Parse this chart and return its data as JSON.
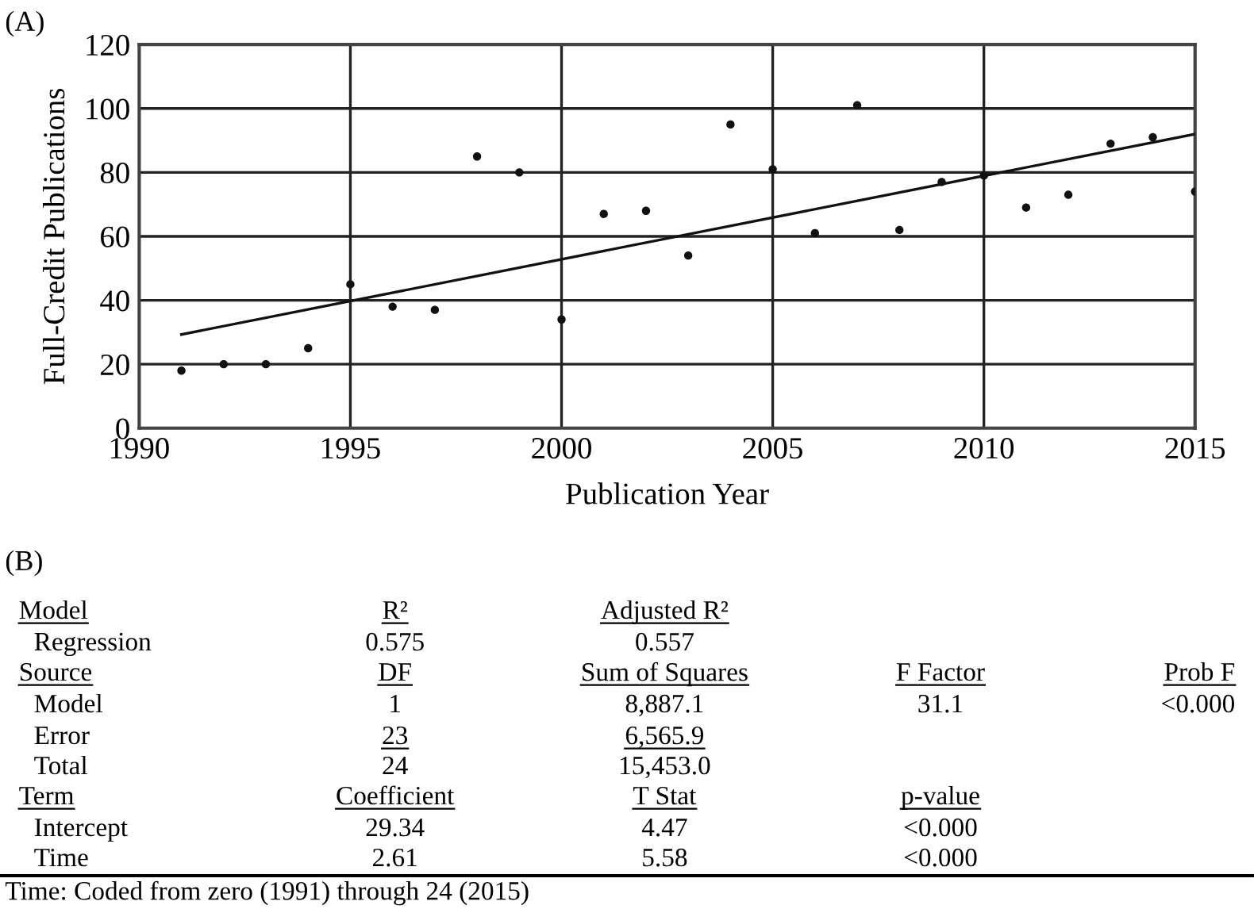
{
  "chart_data": {
    "type": "scatter",
    "xlabel": "Publication Year",
    "ylabel": "Full-Credit Publications",
    "xlim": [
      1990,
      2015
    ],
    "ylim": [
      0,
      120
    ],
    "xticks": [
      1990,
      1995,
      2000,
      2005,
      2010,
      2015
    ],
    "yticks": [
      0,
      20,
      40,
      60,
      80,
      100,
      120
    ],
    "grid": true,
    "series": [
      {
        "color": "#111111",
        "marker": "circle",
        "x": [
          1991,
          1992,
          1993,
          1994,
          1995,
          1996,
          1997,
          1998,
          1999,
          2000,
          2001,
          2002,
          2003,
          2004,
          2005,
          2006,
          2007,
          2008,
          2009,
          2010,
          2011,
          2012,
          2013,
          2014,
          2015
        ],
        "values": [
          18,
          20,
          20,
          25,
          45,
          38,
          37,
          85,
          80,
          34,
          67,
          68,
          54,
          95,
          81,
          61,
          101,
          62,
          77,
          79,
          69,
          73,
          89,
          91,
          74
        ]
      },
      {
        "type": "line",
        "color": "#111111",
        "x": [
          1991,
          2015
        ],
        "values": [
          29.3,
          92.0
        ],
        "line_style": "solid"
      }
    ],
    "annotations": [
      "(A)",
      "(B)",
      "Model",
      "R²",
      "Adjusted R²",
      "Regression",
      "0.575",
      "0.557",
      "Source",
      "DF",
      "Sum of Squares",
      "F Factor",
      "Prob F",
      "Model",
      "1",
      "8,887.1",
      "31.1",
      "<0.000",
      "Error",
      "23",
      "6,565.9",
      "Total",
      "24",
      "15,453.0",
      "Term",
      "Coefficient",
      "T Stat",
      "p-value",
      "Intercept",
      "29.34",
      "4.47",
      "<0.000",
      "Time",
      "2.61",
      "5.58",
      "<0.000",
      "Time: Coded from zero (1991) through 24 (2015)"
    ]
  }
}
